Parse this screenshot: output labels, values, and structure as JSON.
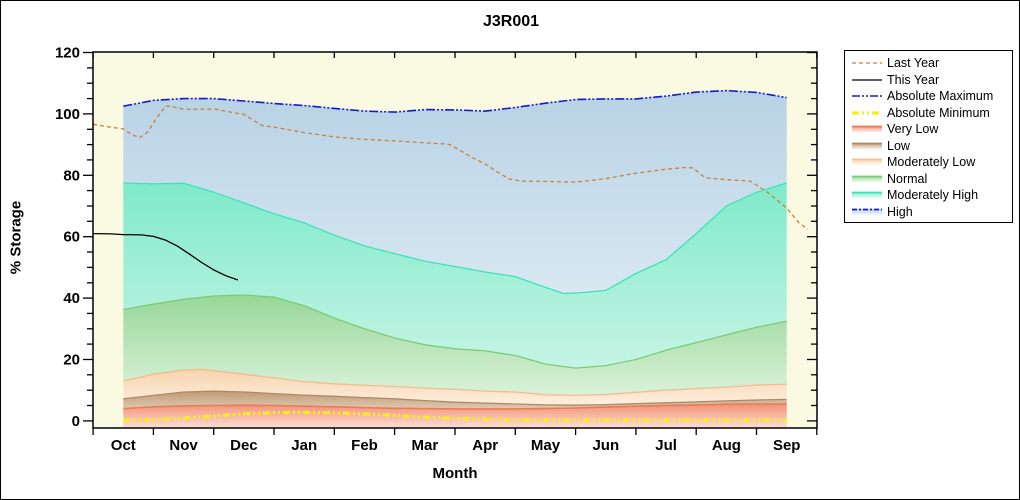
{
  "chart_data": {
    "type": "area",
    "title": "J3R001",
    "xlabel": "Month",
    "ylabel": "% Storage",
    "x_categories": [
      "Oct",
      "Nov",
      "Dec",
      "Jan",
      "Feb",
      "Mar",
      "Apr",
      "May",
      "Jun",
      "Jul",
      "Aug",
      "Sep"
    ],
    "y_ticks": [
      0,
      20,
      40,
      60,
      80,
      100,
      120
    ],
    "ylim": [
      0,
      120
    ],
    "background_color": "#fafae2",
    "grid": false,
    "legend_position": "right",
    "series": {
      "absolute_maximum": [
        [
          0,
          102.5
        ],
        [
          0.5,
          104.4
        ],
        [
          1,
          105
        ],
        [
          1.5,
          105
        ],
        [
          2,
          104.2
        ],
        [
          2.5,
          103.4
        ],
        [
          3,
          102.7
        ],
        [
          3.5,
          101.8
        ],
        [
          4,
          100.9
        ],
        [
          4.5,
          100.6
        ],
        [
          5,
          101.4
        ],
        [
          5.5,
          101.3
        ],
        [
          6,
          100.9
        ],
        [
          6.5,
          102.1
        ],
        [
          7,
          103.5
        ],
        [
          7.5,
          104.7
        ],
        [
          8,
          104.9
        ],
        [
          8.5,
          104.9
        ],
        [
          9,
          105.8
        ],
        [
          9.5,
          107.1
        ],
        [
          10,
          107.6
        ],
        [
          10.5,
          107
        ],
        [
          11,
          105.3
        ]
      ],
      "moderately_high_top": [
        [
          0,
          77.5
        ],
        [
          0.5,
          77.2
        ],
        [
          1,
          77.4
        ],
        [
          1.5,
          74.5
        ],
        [
          2,
          71
        ],
        [
          2.5,
          67.5
        ],
        [
          3,
          64.5
        ],
        [
          3.5,
          60.5
        ],
        [
          4,
          57
        ],
        [
          4.5,
          54.5
        ],
        [
          5,
          52
        ],
        [
          5.5,
          50.3
        ],
        [
          6,
          48.5
        ],
        [
          6.5,
          47
        ],
        [
          7,
          43.5
        ],
        [
          7.3,
          41.5
        ],
        [
          7.6,
          41.8
        ],
        [
          8,
          42.5
        ],
        [
          8.5,
          48
        ],
        [
          9,
          52.5
        ],
        [
          9.5,
          61
        ],
        [
          10,
          70
        ],
        [
          10.5,
          74.5
        ],
        [
          11,
          77.5
        ]
      ],
      "normal_top": [
        [
          0,
          36.3
        ],
        [
          0.5,
          38
        ],
        [
          1,
          39.6
        ],
        [
          1.5,
          40.7
        ],
        [
          2,
          41
        ],
        [
          2.5,
          40.3
        ],
        [
          3,
          37.5
        ],
        [
          3.5,
          33.5
        ],
        [
          4,
          30
        ],
        [
          4.5,
          27
        ],
        [
          5,
          24.8
        ],
        [
          5.5,
          23.5
        ],
        [
          6,
          22.8
        ],
        [
          6.5,
          21.3
        ],
        [
          7,
          18.5
        ],
        [
          7.5,
          17.2
        ],
        [
          8,
          18
        ],
        [
          8.5,
          20
        ],
        [
          9,
          23
        ],
        [
          9.5,
          25.5
        ],
        [
          10,
          28
        ],
        [
          10.5,
          30.5
        ],
        [
          11,
          32.5
        ]
      ],
      "moderately_low_top": [
        [
          0,
          13
        ],
        [
          0.5,
          15.2
        ],
        [
          1,
          16.5
        ],
        [
          1.3,
          16.8
        ],
        [
          2,
          15.2
        ],
        [
          2.5,
          14
        ],
        [
          3,
          12.8
        ],
        [
          3.5,
          12.1
        ],
        [
          4,
          11.6
        ],
        [
          4.5,
          11.2
        ],
        [
          5,
          10.7
        ],
        [
          5.5,
          10.3
        ],
        [
          6,
          9.7
        ],
        [
          6.5,
          9.4
        ],
        [
          7,
          8.5
        ],
        [
          7.5,
          8.3
        ],
        [
          8,
          8.6
        ],
        [
          8.5,
          9.3
        ],
        [
          9,
          10
        ],
        [
          9.5,
          10.5
        ],
        [
          10,
          11
        ],
        [
          10.5,
          11.7
        ],
        [
          11,
          12
        ]
      ],
      "low_top": [
        [
          0,
          7.2
        ],
        [
          0.5,
          8.3
        ],
        [
          1,
          9.4
        ],
        [
          1.5,
          9.7
        ],
        [
          2,
          9.4
        ],
        [
          2.5,
          8.9
        ],
        [
          3,
          8.4
        ],
        [
          3.5,
          8
        ],
        [
          4,
          7.6
        ],
        [
          4.5,
          7.2
        ],
        [
          5,
          6.6
        ],
        [
          5.5,
          6.1
        ],
        [
          6,
          5.8
        ],
        [
          6.5,
          5.5
        ],
        [
          7,
          5.2
        ],
        [
          7.5,
          5.1
        ],
        [
          8,
          5.3
        ],
        [
          8.5,
          5.6
        ],
        [
          9,
          5.9
        ],
        [
          9.5,
          6.2
        ],
        [
          10,
          6.5
        ],
        [
          10.5,
          6.8
        ],
        [
          11,
          7
        ]
      ],
      "very_low_top": [
        [
          0,
          4
        ],
        [
          0.5,
          4.6
        ],
        [
          1,
          4.9
        ],
        [
          1.5,
          5
        ],
        [
          2,
          5.1
        ],
        [
          2.5,
          5
        ],
        [
          3,
          4.8
        ],
        [
          3.5,
          4.6
        ],
        [
          4,
          4.3
        ],
        [
          4.5,
          4.1
        ],
        [
          5,
          4
        ],
        [
          5.5,
          3.9
        ],
        [
          6,
          3.9
        ],
        [
          6.5,
          3.9
        ],
        [
          7,
          4
        ],
        [
          7.5,
          4.2
        ],
        [
          8,
          4.5
        ],
        [
          8.5,
          4.8
        ],
        [
          9,
          5
        ],
        [
          9.5,
          5.2
        ],
        [
          10,
          5.4
        ],
        [
          10.5,
          5.5
        ],
        [
          11,
          5.5
        ]
      ],
      "absolute_minimum": [
        [
          0,
          0.3
        ],
        [
          0.5,
          0.4
        ],
        [
          1,
          0.9
        ],
        [
          1.5,
          1.6
        ],
        [
          2,
          2.3
        ],
        [
          2.5,
          2.7
        ],
        [
          3,
          2.8
        ],
        [
          3.5,
          2.6
        ],
        [
          4,
          2.3
        ],
        [
          4.5,
          1.8
        ],
        [
          5,
          1.2
        ],
        [
          5.5,
          0.8
        ],
        [
          6,
          0.6
        ],
        [
          6.5,
          0.4
        ],
        [
          7,
          0.3
        ],
        [
          7.5,
          0.3
        ],
        [
          8,
          0.3
        ],
        [
          8.5,
          0.3
        ],
        [
          9,
          0.3
        ],
        [
          9.5,
          0.3
        ],
        [
          10,
          0.3
        ],
        [
          10.5,
          0.3
        ],
        [
          11,
          0.4
        ]
      ],
      "last_year": [
        [
          -0.5,
          96.6
        ],
        [
          -0.25,
          95.8
        ],
        [
          0,
          95.1
        ],
        [
          0.15,
          93.2
        ],
        [
          0.27,
          92.2
        ],
        [
          0.4,
          94
        ],
        [
          0.55,
          98.5
        ],
        [
          0.7,
          102.6
        ],
        [
          0.85,
          102.2
        ],
        [
          1,
          101.5
        ],
        [
          1.5,
          101.6
        ],
        [
          2,
          99.8
        ],
        [
          2.3,
          96.2
        ],
        [
          2.5,
          95.7
        ],
        [
          3,
          93.9
        ],
        [
          3.5,
          92.5
        ],
        [
          4,
          91.7
        ],
        [
          4.5,
          91.2
        ],
        [
          5,
          90.6
        ],
        [
          5.4,
          90.1
        ],
        [
          5.6,
          87.9
        ],
        [
          5.8,
          85.6
        ],
        [
          6,
          83.7
        ],
        [
          6.2,
          81.1
        ],
        [
          6.4,
          78.8
        ],
        [
          6.6,
          78.1
        ],
        [
          7,
          78
        ],
        [
          7.5,
          77.8
        ],
        [
          8,
          78.9
        ],
        [
          8.5,
          80.7
        ],
        [
          9,
          82
        ],
        [
          9.3,
          82.5
        ],
        [
          9.45,
          82.4
        ],
        [
          9.55,
          80.7
        ],
        [
          9.65,
          79.2
        ],
        [
          10,
          78.6
        ],
        [
          10.4,
          78.1
        ],
        [
          10.7,
          74.2
        ],
        [
          11,
          69.3
        ],
        [
          11.2,
          64.6
        ],
        [
          11.35,
          62.4
        ]
      ],
      "this_year": [
        [
          -0.5,
          61
        ],
        [
          -0.2,
          60.9
        ],
        [
          0,
          60.7
        ],
        [
          0.3,
          60.6
        ],
        [
          0.5,
          60.1
        ],
        [
          0.7,
          58.9
        ],
        [
          0.9,
          56.9
        ],
        [
          1.1,
          54.3
        ],
        [
          1.3,
          51.6
        ],
        [
          1.5,
          49.2
        ],
        [
          1.7,
          47.3
        ],
        [
          1.9,
          45.9
        ]
      ]
    },
    "bands": [
      {
        "name": "High",
        "top": "absolute_maximum",
        "bottom": "moderately_high_top",
        "fill_from": "#b7d2e5",
        "fill_to": "#d8e8f1",
        "line": "#1717cf",
        "dash": "9 2 2 2 2 2",
        "lw": 1.6
      },
      {
        "name": "Moderately High",
        "top": "moderately_high_top",
        "bottom": "normal_top",
        "fill_from": "#7feacb",
        "fill_to": "#c6f4e4",
        "line": "#3fe2b8",
        "dash": "",
        "lw": 1.3
      },
      {
        "name": "Normal",
        "top": "normal_top",
        "bottom": "moderately_low_top",
        "fill_from": "#98d798",
        "fill_to": "#daf2da",
        "line": "#79cc79",
        "dash": "",
        "lw": 1.3
      },
      {
        "name": "Moderately Low",
        "top": "moderately_low_top",
        "bottom": "low_top",
        "fill_from": "#f7d4ae",
        "fill_to": "#fcefdf",
        "line": "#f2bd90",
        "dash": "",
        "lw": 1.3
      },
      {
        "name": "Low",
        "top": "low_top",
        "bottom": "very_low_top",
        "fill_from": "#c09a72",
        "fill_to": "#ddcab4",
        "line": "#ad8a64",
        "dash": "",
        "lw": 1.3
      },
      {
        "name": "Very Low",
        "top": "very_low_top",
        "bottom": null,
        "fill_from": "#f29274",
        "fill_to": "#fbe0d7",
        "line": "#ec7a56",
        "dash": "",
        "lw": 1.6
      }
    ],
    "lines": [
      {
        "name": "absolute_minimum",
        "color": "#f4ee20",
        "dash": "7 3 2 3 2 3",
        "lw": 3.2
      },
      {
        "name": "last_year",
        "color": "#c8813b",
        "dash": "4 3",
        "lw": 1.3
      },
      {
        "name": "this_year",
        "color": "#000000",
        "dash": "",
        "lw": 1.3
      }
    ],
    "legend": {
      "items": [
        {
          "label": "Last Year",
          "kind": "line",
          "color": "#c8813b",
          "dash": "4 3",
          "lw": 1.3
        },
        {
          "label": "This Year",
          "kind": "line",
          "color": "#000000",
          "dash": "",
          "lw": 1.3
        },
        {
          "label": "Absolute Maximum",
          "kind": "line",
          "color": "#1717cf",
          "dash": "8 2 2 2 2 2",
          "lw": 1.6
        },
        {
          "label": "Absolute Minimum",
          "kind": "line",
          "color": "#f4ee20",
          "dash": "7 3 2 3 2 3",
          "lw": 3.2
        },
        {
          "label": "Very Low",
          "kind": "band",
          "line": "#ec7a56",
          "fill": "#f29274"
        },
        {
          "label": "Low",
          "kind": "band",
          "line": "#ad8a64",
          "fill": "#c09a72"
        },
        {
          "label": "Moderately Low",
          "kind": "band",
          "line": "#f2bd90",
          "fill": "#f7d4ae"
        },
        {
          "label": "Normal",
          "kind": "band",
          "line": "#79cc79",
          "fill": "#98d798"
        },
        {
          "label": "Moderately High",
          "kind": "band",
          "line": "#3fe2b8",
          "fill": "#7feacb"
        },
        {
          "label": "High",
          "kind": "band",
          "line": "#1717cf",
          "line_dashed": true,
          "fill": "#b7d2e5"
        }
      ]
    }
  }
}
